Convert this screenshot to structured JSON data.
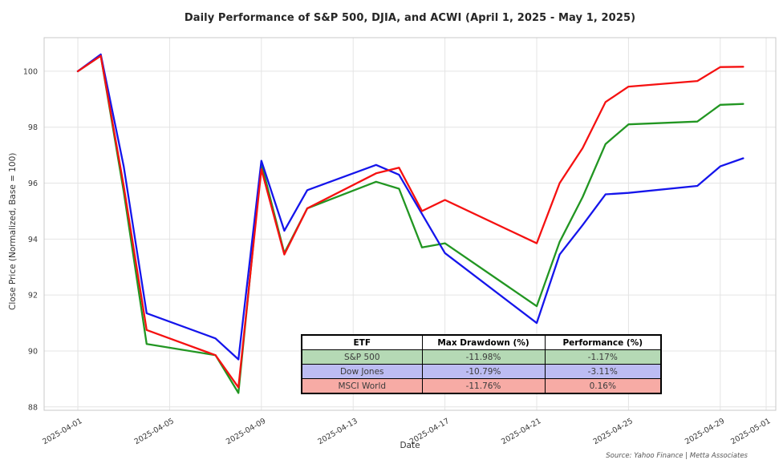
{
  "chart_data": {
    "type": "line",
    "title": "Daily Performance of S&P 500, DJIA, and ACWI (April 1, 2025 - May 1, 2025)",
    "xlabel": "Date",
    "ylabel": "Close Price (Normalized, Base = 100)",
    "source_note": "Source: Yahoo Finance | Metta Associates",
    "x": [
      "2025-04-01",
      "2025-04-02",
      "2025-04-03",
      "2025-04-04",
      "2025-04-07",
      "2025-04-08",
      "2025-04-09",
      "2025-04-10",
      "2025-04-11",
      "2025-04-14",
      "2025-04-15",
      "2025-04-16",
      "2025-04-17",
      "2025-04-21",
      "2025-04-22",
      "2025-04-23",
      "2025-04-24",
      "2025-04-25",
      "2025-04-28",
      "2025-04-29",
      "2025-04-30"
    ],
    "x_day_offsets": [
      0,
      1,
      2,
      3,
      6,
      7,
      8,
      9,
      10,
      13,
      14,
      15,
      16,
      20,
      21,
      22,
      23,
      24,
      27,
      28,
      29
    ],
    "series": [
      {
        "name": "S&P 500",
        "color": "#229622",
        "values": [
          100.0,
          100.55,
          95.7,
          90.25,
          89.85,
          88.5,
          96.7,
          93.5,
          95.1,
          96.05,
          95.8,
          93.7,
          93.85,
          91.6,
          93.9,
          95.5,
          97.4,
          98.1,
          98.2,
          98.8,
          98.83
        ]
      },
      {
        "name": "Dow Jones (DJIA)",
        "color": "#1515eb",
        "values": [
          100.0,
          100.6,
          96.6,
          91.35,
          90.45,
          89.7,
          96.8,
          94.3,
          95.75,
          96.65,
          96.3,
          94.9,
          93.5,
          91.0,
          93.45,
          94.5,
          95.6,
          95.65,
          95.9,
          96.6,
          96.89
        ]
      },
      {
        "name": "MSCI World (ACWI)",
        "color": "#f51111",
        "values": [
          100.0,
          100.55,
          95.9,
          90.75,
          89.85,
          88.7,
          96.5,
          93.45,
          95.1,
          96.35,
          96.55,
          95.0,
          95.4,
          93.85,
          96.0,
          97.25,
          98.9,
          99.45,
          99.65,
          100.15,
          100.16
        ]
      }
    ],
    "x_tick_labels": [
      "2025-04-01",
      "2025-04-05",
      "2025-04-09",
      "2025-04-13",
      "2025-04-17",
      "2025-04-21",
      "2025-04-25",
      "2025-04-29",
      "2025-05-01"
    ],
    "x_tick_days": [
      0,
      4,
      8,
      12,
      16,
      20,
      24,
      28,
      30
    ],
    "y_ticks": [
      88,
      90,
      92,
      94,
      96,
      98,
      100
    ],
    "xlim_days": [
      -1.47,
      30.42
    ],
    "ylim": [
      87.88,
      101.2
    ],
    "grid": true,
    "legend_position": "none"
  },
  "table": {
    "columns": [
      "ETF",
      "Max Drawdown (%)",
      "Performance (%)"
    ],
    "rows": [
      {
        "etf": "S&P 500",
        "max_drawdown": "-11.98%",
        "performance": "-1.17%",
        "row_color": "#b5d9b5"
      },
      {
        "etf": "Dow Jones",
        "max_drawdown": "-10.79%",
        "performance": "-3.11%",
        "row_color": "#bcbcf2"
      },
      {
        "etf": "MSCI World",
        "max_drawdown": "-11.76%",
        "performance": "0.16%",
        "row_color": "#f7aba5"
      }
    ]
  }
}
